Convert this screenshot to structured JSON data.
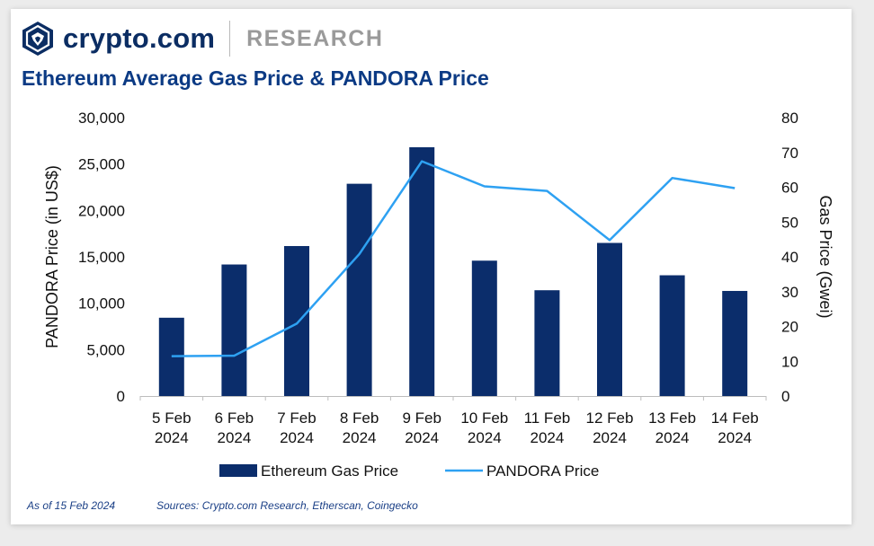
{
  "brand": {
    "name": "crypto.com",
    "section": "RESEARCH"
  },
  "title": "Ethereum Average Gas Price & PANDORA Price",
  "footer": {
    "as_of": "As of 15 Feb 2024",
    "sources": "Sources: Crypto.com Research, Etherscan, Coingecko"
  },
  "colors": {
    "bar": "#0b2d6b",
    "line": "#2ea1f2",
    "brand": "#0b2d63",
    "title": "#0b3a84"
  },
  "icons": {
    "logo": "crypto-com-lion-shield-icon"
  },
  "chart_data": {
    "type": "bar",
    "title": "Ethereum Average Gas Price & PANDORA Price",
    "categories": [
      [
        "5 Feb",
        "2024"
      ],
      [
        "6 Feb",
        "2024"
      ],
      [
        "7 Feb",
        "2024"
      ],
      [
        "8 Feb",
        "2024"
      ],
      [
        "9 Feb",
        "2024"
      ],
      [
        "10 Feb",
        "2024"
      ],
      [
        "11 Feb",
        "2024"
      ],
      [
        "12 Feb",
        "2024"
      ],
      [
        "13 Feb",
        "2024"
      ],
      [
        "14 Feb",
        "2024"
      ]
    ],
    "y_left": {
      "label": "PANDORA Price (in US$)",
      "lim": [
        0,
        30000
      ],
      "ticks": [
        "0",
        "5,000",
        "10,000",
        "15,000",
        "20,000",
        "25,000",
        "30,000"
      ]
    },
    "y_right": {
      "label": "Gas Price (Gwei)",
      "lim": [
        0,
        80
      ],
      "ticks": [
        "0",
        "10",
        "20",
        "30",
        "40",
        "50",
        "60",
        "70",
        "80"
      ]
    },
    "series": [
      {
        "name": "Ethereum Gas Price",
        "type": "bar",
        "axis": "right",
        "values": [
          22.5,
          37.8,
          43.1,
          61.0,
          71.5,
          38.9,
          30.4,
          44.0,
          34.7,
          30.2
        ]
      },
      {
        "name": "PANDORA Price",
        "type": "line",
        "axis": "left",
        "values": [
          4300,
          4350,
          7800,
          15300,
          25300,
          22600,
          22100,
          16800,
          23500,
          22400
        ]
      }
    ],
    "legend_position": "bottom",
    "grid": false
  }
}
